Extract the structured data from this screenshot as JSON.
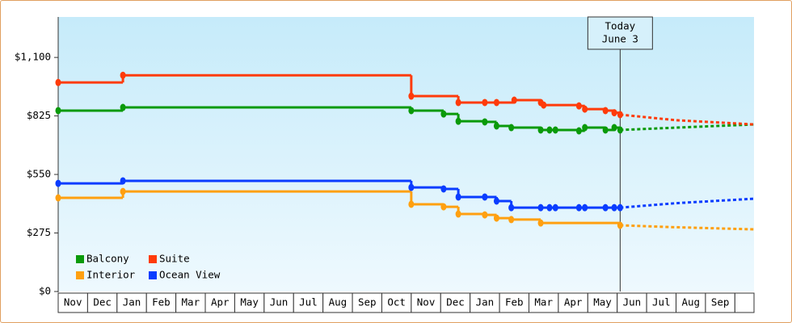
{
  "chart_data": {
    "type": "step",
    "xlim": [
      0,
      23.65
    ],
    "ylim": [
      0,
      1290
    ],
    "yticks": [
      {
        "value": 0,
        "label": "$0"
      },
      {
        "value": 275,
        "label": "$275"
      },
      {
        "value": 550,
        "label": "$550"
      },
      {
        "value": 825,
        "label": "$825"
      },
      {
        "value": 1100,
        "label": "$1,100"
      }
    ],
    "months": [
      "Nov",
      "Dec",
      "Jan",
      "Feb",
      "Mar",
      "Apr",
      "May",
      "Jun",
      "Jul",
      "Aug",
      "Sep",
      "Oct",
      "Nov",
      "Dec",
      "Jan",
      "Feb",
      "Mar",
      "Apr",
      "May",
      "Jun",
      "Jul",
      "Aug",
      "Sep",
      null
    ],
    "annotation": {
      "x": 19.1,
      "lines": [
        "Today",
        "June 3"
      ]
    },
    "series": [
      {
        "name": "Balcony",
        "color": "#0a9a0a",
        "x": [
          0,
          2.2,
          12.0,
          13.1,
          13.6,
          14.5,
          14.9,
          15.4,
          16.4,
          16.7,
          16.9,
          17.7,
          17.9,
          18.6,
          18.9,
          19.1
        ],
        "values": [
          850,
          865,
          850,
          834,
          800,
          797,
          778,
          770,
          759,
          759,
          759,
          755,
          770,
          759,
          770,
          759
        ],
        "forecast": {
          "x": [
            19.1,
            21.0,
            23.65
          ],
          "values": [
            759,
            770,
            785
          ]
        }
      },
      {
        "name": "Suite",
        "color": "#ff3b0a",
        "x": [
          0,
          2.2,
          12.0,
          13.6,
          14.5,
          14.9,
          15.5,
          16.4,
          16.5,
          17.7,
          17.9,
          18.6,
          18.9,
          19.1
        ],
        "values": [
          982,
          1016,
          918,
          888,
          888,
          888,
          899,
          888,
          876,
          872,
          857,
          850,
          840,
          831
        ],
        "forecast": {
          "x": [
            19.1,
            21.0,
            23.65
          ],
          "values": [
            831,
            805,
            785
          ]
        }
      },
      {
        "name": "Interior",
        "color": "#ffa010",
        "x": [
          0,
          2.2,
          12.0,
          13.1,
          13.6,
          14.5,
          14.9,
          15.4,
          16.4,
          19.1
        ],
        "values": [
          440,
          470,
          410,
          398,
          364,
          360,
          345,
          338,
          322,
          311
        ],
        "forecast": {
          "x": [
            19.1,
            21.0,
            23.65
          ],
          "values": [
            311,
            302,
            292
          ]
        }
      },
      {
        "name": "Ocean View",
        "color": "#0a3cff",
        "x": [
          0,
          2.2,
          12.0,
          13.1,
          13.6,
          14.5,
          14.9,
          15.4,
          16.4,
          16.7,
          16.9,
          17.7,
          17.9,
          18.6,
          18.9,
          19.1
        ],
        "values": [
          508,
          520,
          489,
          482,
          444,
          444,
          425,
          394,
          394,
          394,
          394,
          394,
          394,
          394,
          394,
          394
        ],
        "forecast": {
          "x": [
            19.1,
            21.0,
            23.65
          ],
          "values": [
            394,
            415,
            436
          ]
        }
      }
    ]
  }
}
